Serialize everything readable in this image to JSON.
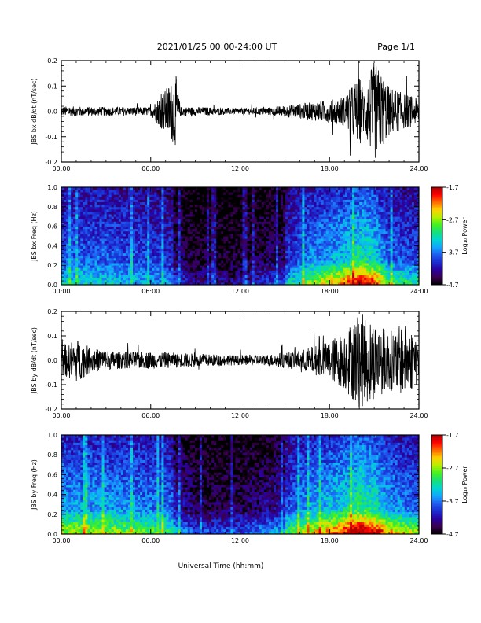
{
  "header": {
    "date_range": "2021/01/25  00:00-24:00 UT",
    "page": "Page 1/1"
  },
  "x_axis": {
    "label": "Universal Time (hh:mm)",
    "ticks": [
      "00:00",
      "06:00",
      "12:00",
      "18:00",
      "24:00"
    ],
    "range_hours": [
      0,
      24
    ]
  },
  "colorbar": {
    "label": "Log₁₀ Power",
    "ticks": [
      "-1.7",
      "-2.7",
      "-3.7",
      "-4.7"
    ],
    "range": [
      -4.7,
      -1.7
    ],
    "colormap": [
      "#000000",
      "#3a0050",
      "#2a00a0",
      "#1a2cd0",
      "#1f5cf0",
      "#13a6ff",
      "#00d6d0",
      "#16e07a",
      "#44f020",
      "#b6f000",
      "#ffd000",
      "#ff6a00",
      "#ff0000",
      "#b00000"
    ]
  },
  "chart_data": [
    {
      "type": "line",
      "title": "",
      "ylabel": "JBS bx dB/dt (nT/sec)",
      "ylim": [
        -0.2,
        0.2
      ],
      "yticks": [
        "0.2",
        "0.1",
        "0.0",
        "-0.1",
        "-0.2"
      ],
      "x": [
        0,
        2,
        4,
        6,
        7.7,
        8,
        10,
        12,
        14,
        16,
        18,
        19,
        20,
        20.3,
        21,
        22,
        23,
        24
      ],
      "envelope": [
        0.02,
        0.018,
        0.017,
        0.017,
        0.14,
        0.018,
        0.016,
        0.012,
        0.016,
        0.03,
        0.045,
        0.06,
        0.14,
        0.09,
        0.2,
        0.1,
        0.07,
        0.05
      ],
      "color": "#000000"
    },
    {
      "type": "heatmap",
      "title": "",
      "ylabel": "JBS bx Freq (Hz)",
      "ylim": [
        0,
        1.0
      ],
      "yticks": [
        "1.0",
        "0.8",
        "0.6",
        "0.4",
        "0.2",
        "0.0"
      ],
      "zlim": [
        -4.7,
        -1.7
      ],
      "time_hours": [
        0,
        3,
        6,
        7.5,
        9,
        12,
        15,
        16.5,
        18,
        19,
        20,
        21,
        22,
        24
      ],
      "activity": [
        0.35,
        0.35,
        0.3,
        0.25,
        0.15,
        0.15,
        0.25,
        0.4,
        0.45,
        0.5,
        0.6,
        0.55,
        0.35,
        0.3
      ],
      "lowfreq_boost": [
        0.25,
        0.22,
        0.2,
        0.2,
        0.2,
        0.15,
        0.3,
        0.45,
        0.6,
        0.7,
        0.8,
        0.75,
        0.55,
        0.4
      ]
    },
    {
      "type": "line",
      "title": "",
      "ylabel": "JBS by dB/dt (nT/sec)",
      "ylim": [
        -0.2,
        0.2
      ],
      "yticks": [
        "0.2",
        "0.1",
        "0.0",
        "-0.1",
        "-0.2"
      ],
      "x": [
        0,
        1,
        2,
        4,
        6,
        8,
        10,
        12,
        14,
        16,
        18,
        19,
        20,
        21,
        22,
        23,
        24
      ],
      "envelope": [
        0.06,
        0.09,
        0.05,
        0.035,
        0.035,
        0.03,
        0.025,
        0.02,
        0.025,
        0.04,
        0.08,
        0.12,
        0.2,
        0.16,
        0.12,
        0.15,
        0.1
      ],
      "color": "#000000"
    },
    {
      "type": "heatmap",
      "title": "",
      "ylabel": "JBS by Freq (Hz)",
      "ylim": [
        0,
        1.0
      ],
      "yticks": [
        "1.0",
        "0.8",
        "0.6",
        "0.4",
        "0.2",
        "0.0"
      ],
      "zlim": [
        -4.7,
        -1.7
      ],
      "time_hours": [
        0,
        3,
        6,
        7.5,
        9,
        12,
        15,
        16.5,
        18,
        19,
        20,
        21,
        22,
        24
      ],
      "activity": [
        0.45,
        0.45,
        0.4,
        0.35,
        0.2,
        0.2,
        0.3,
        0.45,
        0.5,
        0.55,
        0.65,
        0.6,
        0.45,
        0.35
      ],
      "lowfreq_boost": [
        0.45,
        0.45,
        0.4,
        0.4,
        0.35,
        0.35,
        0.45,
        0.55,
        0.65,
        0.75,
        0.85,
        0.8,
        0.7,
        0.6
      ]
    }
  ]
}
